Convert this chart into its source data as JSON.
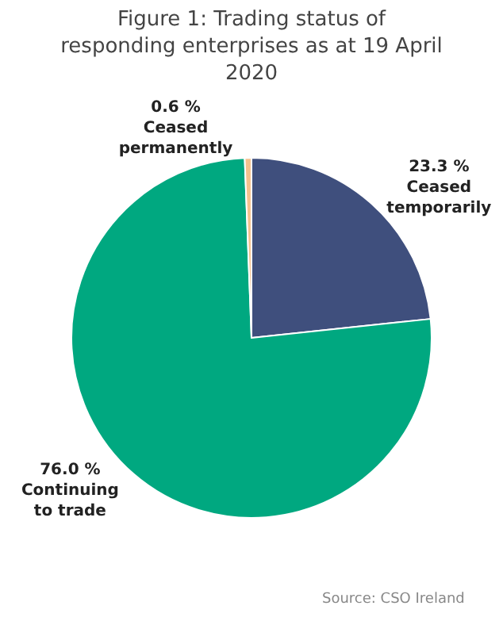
{
  "chart_data": {
    "type": "pie",
    "title": "Figure 1: Trading status of\nresponding enterprises as at 19 April\n2020",
    "categories": [
      "Ceased temporarily",
      "Continuing to trade",
      "Ceased permanently"
    ],
    "values": [
      23.3,
      76.0,
      0.6
    ],
    "value_labels": [
      "23.3 %",
      "76.0 %",
      "0.6 %"
    ],
    "colors": [
      "#3f4f7d",
      "#00a880",
      "#f5c28e"
    ],
    "legend": false,
    "annotations": [
      "Source: CSO Ireland"
    ]
  }
}
